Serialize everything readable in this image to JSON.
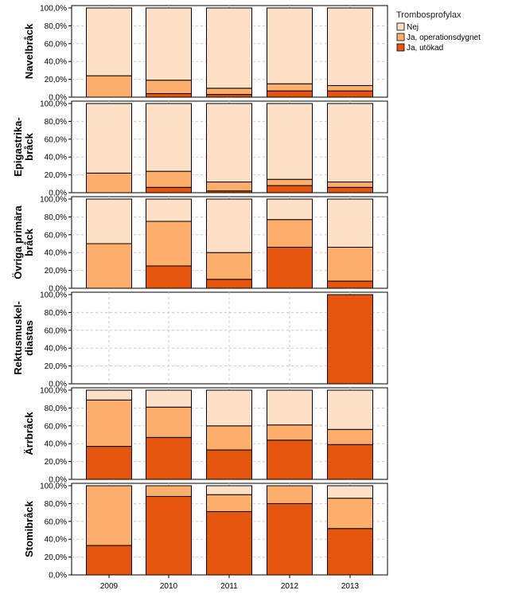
{
  "chart_data": {
    "type": "bar",
    "stacked": true,
    "categories": [
      "2009",
      "2010",
      "2011",
      "2012",
      "2013"
    ],
    "ylim": [
      0,
      100
    ],
    "yticks": [
      "0,0%",
      "20,0%",
      "40,0%",
      "60,0%",
      "80,0%",
      "100,0%"
    ],
    "grid": true,
    "legend": {
      "title": "Trombosprofylax",
      "position": "top-right",
      "entries": [
        {
          "name": "Nej",
          "color": "#fde0c5"
        },
        {
          "name": "Ja, operationsdygnet",
          "color": "#fdae6b"
        },
        {
          "name": "Ja, utökad",
          "color": "#e6550d"
        }
      ]
    },
    "panels": [
      {
        "label": [
          "Navelbråck"
        ],
        "utokad": [
          0,
          4,
          3,
          7,
          7
        ],
        "operationsdygnet": [
          24,
          15,
          7,
          8,
          6
        ],
        "nej": [
          76,
          81,
          90,
          85,
          87
        ]
      },
      {
        "label": [
          "Epigastrika-",
          "bråck"
        ],
        "utokad": [
          0,
          6,
          2,
          8,
          6
        ],
        "operationsdygnet": [
          22,
          18,
          10,
          7,
          6
        ],
        "nej": [
          78,
          76,
          88,
          85,
          88
        ]
      },
      {
        "label": [
          "Övriga primära",
          "bråck"
        ],
        "utokad": [
          0,
          25,
          10,
          46,
          8
        ],
        "operationsdygnet": [
          50,
          50,
          30,
          31,
          38
        ],
        "nej": [
          50,
          25,
          60,
          23,
          54
        ]
      },
      {
        "label": [
          "Rektusmuskel-",
          "diastas"
        ],
        "utokad": [
          null,
          null,
          null,
          null,
          100
        ],
        "operationsdygnet": [
          null,
          null,
          null,
          null,
          0
        ],
        "nej": [
          null,
          null,
          null,
          null,
          0
        ]
      },
      {
        "label": [
          "Ärrbråck"
        ],
        "utokad": [
          37,
          47,
          33,
          44,
          39
        ],
        "operationsdygnet": [
          52,
          34,
          27,
          17,
          17
        ],
        "nej": [
          11,
          19,
          40,
          39,
          44
        ]
      },
      {
        "label": [
          "Stomibråck"
        ],
        "utokad": [
          33,
          88,
          71,
          80,
          52
        ],
        "operationsdygnet": [
          67,
          12,
          19,
          20,
          34
        ],
        "nej": [
          0,
          0,
          10,
          0,
          14
        ]
      }
    ]
  }
}
